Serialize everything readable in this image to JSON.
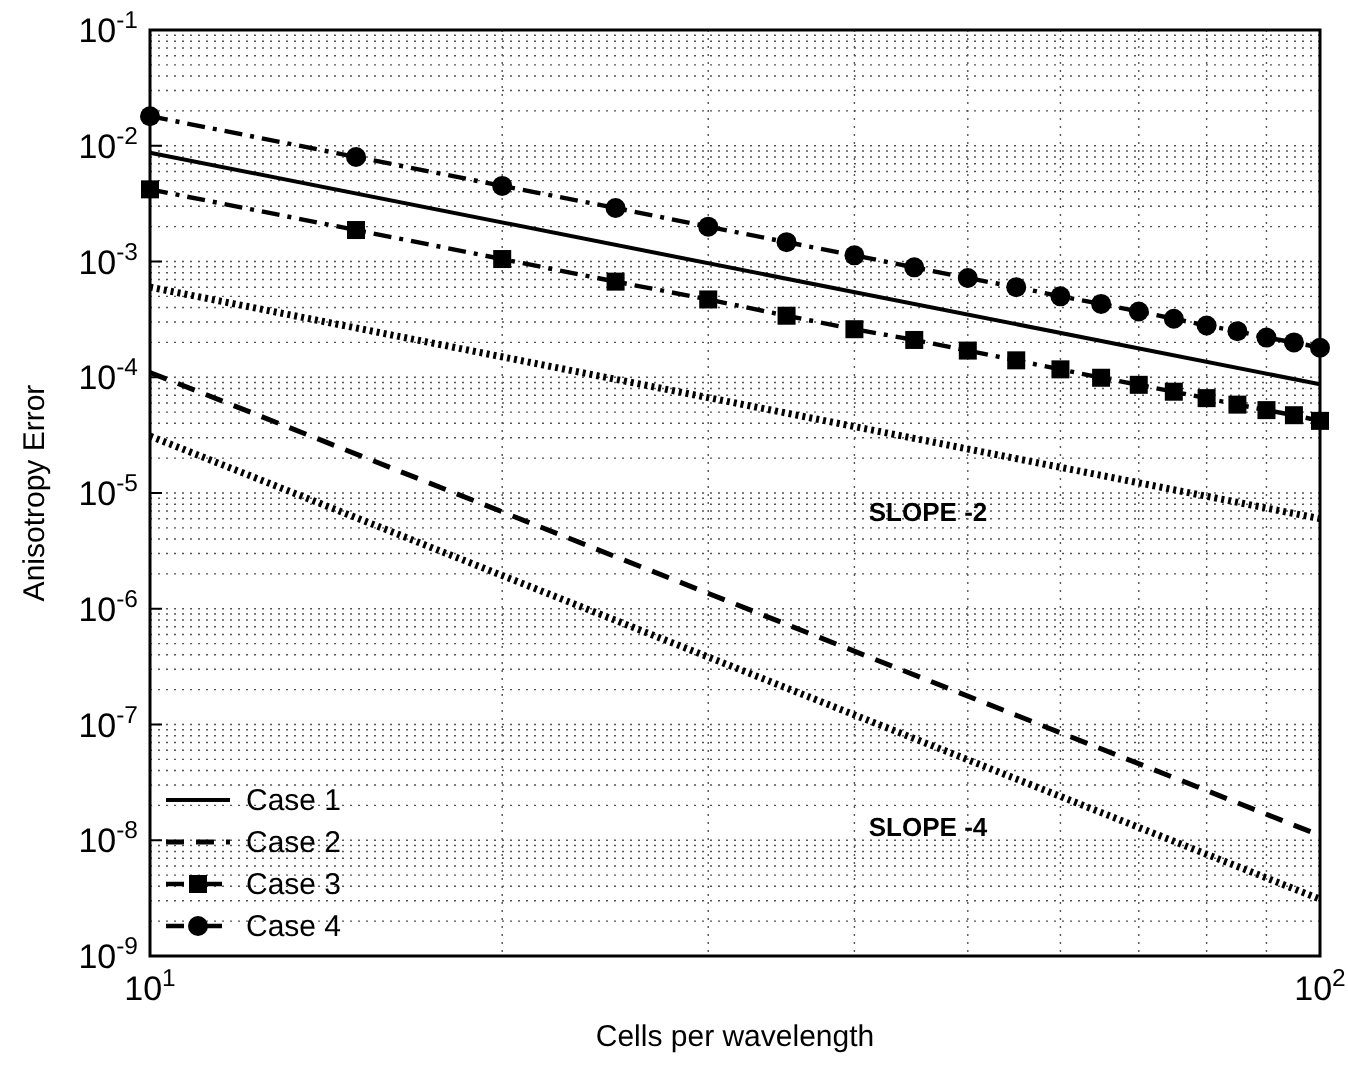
{
  "chart_data": {
    "type": "line",
    "xlabel": "Cells per wavelength",
    "ylabel": "Anisotropy Error",
    "log": "xy",
    "grid": true,
    "legend": "bottom left",
    "xlim": [
      10,
      100
    ],
    "xticks": [
      {
        "value": 10,
        "label": "10$^{1}$"
      },
      {
        "value": 100,
        "label": "10$^{2}$"
      }
    ],
    "ylim": [
      1e-09,
      0.1
    ],
    "yticks": [
      {
        "value": 1e-09,
        "label": "10$^{-9}$"
      },
      {
        "value": 1e-08,
        "label": "10$^{-8}$"
      },
      {
        "value": 1e-07,
        "label": "10$^{-7}$"
      },
      {
        "value": 1e-06,
        "label": "10$^{-6}$"
      },
      {
        "value": 1e-05,
        "label": "10$^{-5}$"
      },
      {
        "value": 0.0001,
        "label": "10$^{-4}$"
      },
      {
        "value": 0.001,
        "label": "10$^{-3}$"
      },
      {
        "value": 0.01,
        "label": "10$^{-2}$"
      },
      {
        "value": 0.1,
        "label": "10$^{-1}$"
      }
    ],
    "series": [
      {
        "name": "Case 1",
        "color": "#000000",
        "line_style": "solid",
        "marker": "none",
        "x": [
          10,
          100
        ],
        "values": [
          0.0087,
          8.7e-05
        ]
      },
      {
        "name": "Case 2",
        "color": "#000000",
        "line_style": "dashed",
        "marker": "none",
        "x": [
          10,
          100
        ],
        "values": [
          0.00011,
          1.1e-08
        ]
      },
      {
        "name": "Case 3",
        "color": "#000000",
        "line_style": "dashdot",
        "marker": "square",
        "x": [
          10,
          15,
          20,
          25,
          30,
          35,
          40,
          45,
          50,
          55,
          60,
          65,
          70,
          75,
          80,
          85,
          90,
          95,
          100
        ],
        "values": [
          0.0042,
          0.00187,
          0.00105,
          0.00067,
          0.00047,
          0.00034,
          0.00026,
          0.00021,
          0.00017,
          0.00014,
          0.000117,
          9.9e-05,
          8.6e-05,
          7.5e-05,
          6.6e-05,
          5.8e-05,
          5.2e-05,
          4.7e-05,
          4.2e-05
        ]
      },
      {
        "name": "Case 4",
        "color": "#000000",
        "line_style": "dashdot",
        "marker": "circle",
        "x": [
          10,
          15,
          20,
          25,
          30,
          35,
          40,
          45,
          50,
          55,
          60,
          65,
          70,
          75,
          80,
          85,
          90,
          95,
          100
        ],
        "values": [
          0.018,
          0.008,
          0.0045,
          0.0029,
          0.002,
          0.00147,
          0.00113,
          0.00089,
          0.00072,
          0.0006,
          0.0005,
          0.00043,
          0.00037,
          0.00032,
          0.00028,
          0.00025,
          0.00022,
          0.0002,
          0.00018
        ]
      },
      {
        "color": "#000000",
        "line_style": "dotted",
        "marker": "none",
        "x": [
          10,
          100
        ],
        "values": [
          0.0006,
          6e-06
        ]
      },
      {
        "color": "#000000",
        "line_style": "dotted",
        "marker": "none",
        "x": [
          10,
          100
        ],
        "values": [
          3.1e-05,
          3.1e-09
        ]
      }
    ],
    "annotations": [
      "SLOPE -2",
      "SLOPE -4"
    ]
  }
}
